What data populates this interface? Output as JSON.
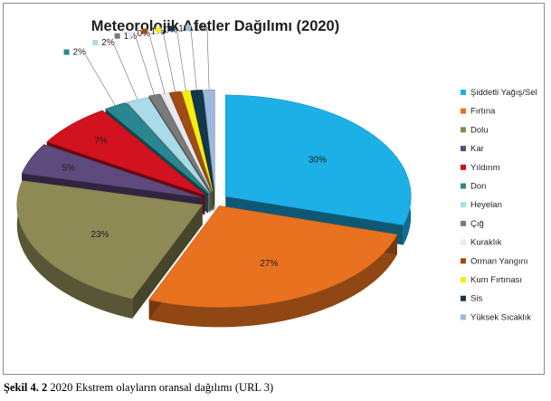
{
  "chart_data": {
    "type": "pie",
    "title": "Meteorolojik Afetler Dağılımı (2020)",
    "legend_position": "right",
    "categories": [
      "Şiddetli Yağış/Sel",
      "Fırtına",
      "Dolu",
      "Kar",
      "Yıldırım",
      "Don",
      "Heyelan",
      "Çığ",
      "Kuraklık",
      "Orman Yangını",
      "Kum Fırtınası",
      "Sis",
      "Yüksek Sıcaklık"
    ],
    "values": [
      30,
      27,
      23,
      5,
      7,
      2,
      2,
      1,
      0,
      1,
      0,
      1,
      1
    ],
    "data_labels": [
      "30%",
      "27%",
      "23%",
      "5%",
      "7%",
      "2%",
      "2%",
      "1%",
      "0%",
      "1%",
      "0%",
      "1%",
      "1%"
    ],
    "colors": [
      "#1cb0e6",
      "#e8721f",
      "#8e8a55",
      "#5f4a7d",
      "#d2121e",
      "#2a8792",
      "#a9dbe8",
      "#7a7a7a",
      "#e8e8ee",
      "#a24c13",
      "#f6ee12",
      "#12384e",
      "#9fb8dc"
    ]
  },
  "caption": {
    "label": "Şekil 4. 2",
    "text": " 2020 Ekstrem olayların oransal dağılımı (URL 3)"
  }
}
